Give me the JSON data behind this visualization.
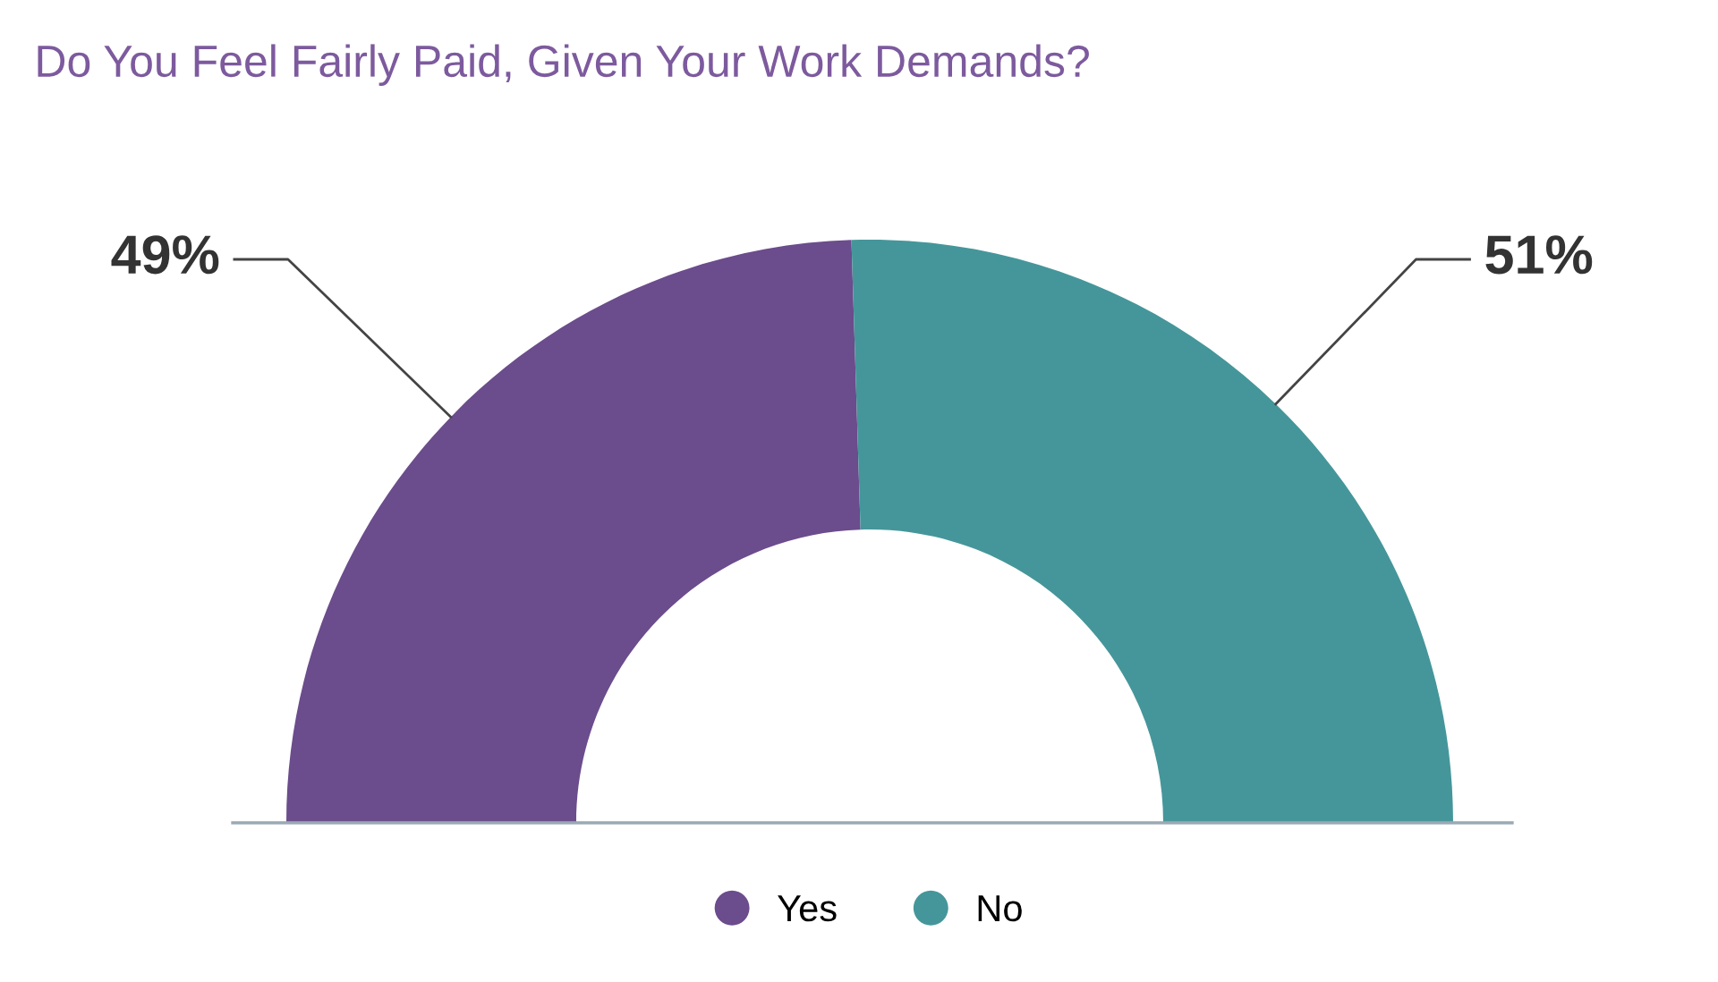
{
  "chart_data": {
    "type": "donut",
    "title": "Do You Feel Fairly Paid, Given Your Work Demands?",
    "categories": [
      "Yes",
      "No"
    ],
    "values": [
      49,
      51
    ],
    "colors": [
      "#6b4c8c",
      "#45969a"
    ],
    "value_labels": [
      "49%",
      "51%"
    ],
    "legend": "bottom"
  }
}
